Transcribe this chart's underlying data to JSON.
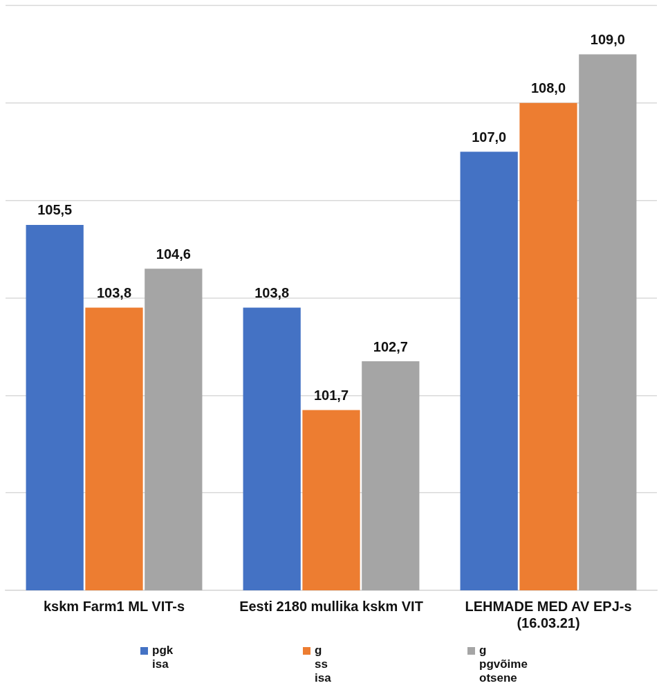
{
  "chart_data": {
    "type": "bar",
    "categories": [
      "kskm Farm1 ML VIT-s",
      "Eesti 2180 mullika kskm VIT",
      "LEHMADE MED AV EPJ-s (16.03.21)"
    ],
    "series": [
      {
        "name": "pgk\nisa",
        "color": "#4472c4",
        "values": [
          105.5,
          103.8,
          107.0
        ],
        "value_labels": [
          "105,5",
          "103,8",
          "107,0"
        ]
      },
      {
        "name": "g\nss\nisa",
        "color": "#ed7d31",
        "values": [
          103.8,
          101.7,
          108.0
        ],
        "value_labels": [
          "103,8",
          "101,7",
          "108,0"
        ]
      },
      {
        "name": "g\npgvõime\notsene",
        "color": "#a5a5a5",
        "values": [
          104.6,
          102.7,
          109.0
        ],
        "value_labels": [
          "104,6",
          "102,7",
          "109,0"
        ]
      }
    ],
    "ylim": [
      98,
      110
    ],
    "yticks": [
      {
        "value": 98,
        "label": null
      },
      {
        "value": 100,
        "label": null
      },
      {
        "value": 102,
        "label": null
      },
      {
        "value": 104,
        "label": null
      },
      {
        "value": 106,
        "label": null
      },
      {
        "value": 108,
        "label": null
      },
      {
        "value": 110,
        "label": null
      }
    ],
    "tick_labels": "x",
    "grid": "y",
    "legend": "bottom"
  }
}
